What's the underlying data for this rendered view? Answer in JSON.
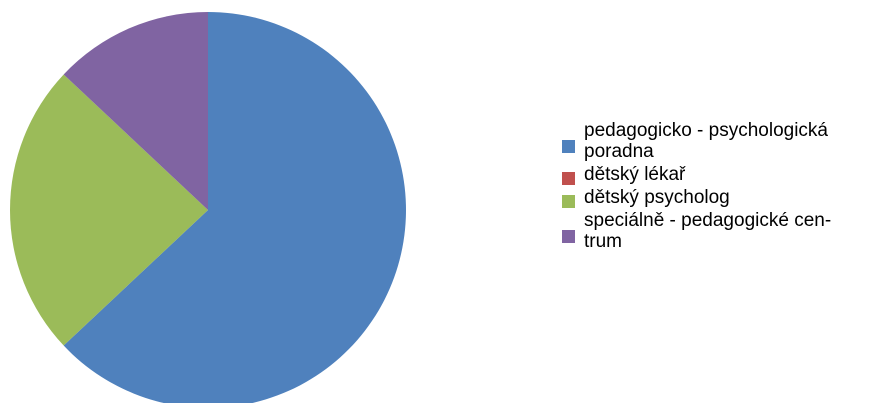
{
  "chart_data": {
    "type": "pie",
    "categories": [
      "pedagogicko - psychologická poradna",
      "dětský lékař",
      "dětský psycholog",
      "speciálně - pedagogické centrum"
    ],
    "legend_labels": [
      "pedagogicko - psychologická\nporadna",
      "dětský lékař",
      "dětský psycholog",
      "speciálně - pedagogické cen-\ntrum"
    ],
    "values": [
      63,
      0,
      24,
      13
    ],
    "colors": [
      "#4F81BD",
      "#C0504D",
      "#9BBB59",
      "#8064A2"
    ],
    "start_angle_deg": 0,
    "direction": "clockwise",
    "legend_position": "right",
    "title": ""
  }
}
